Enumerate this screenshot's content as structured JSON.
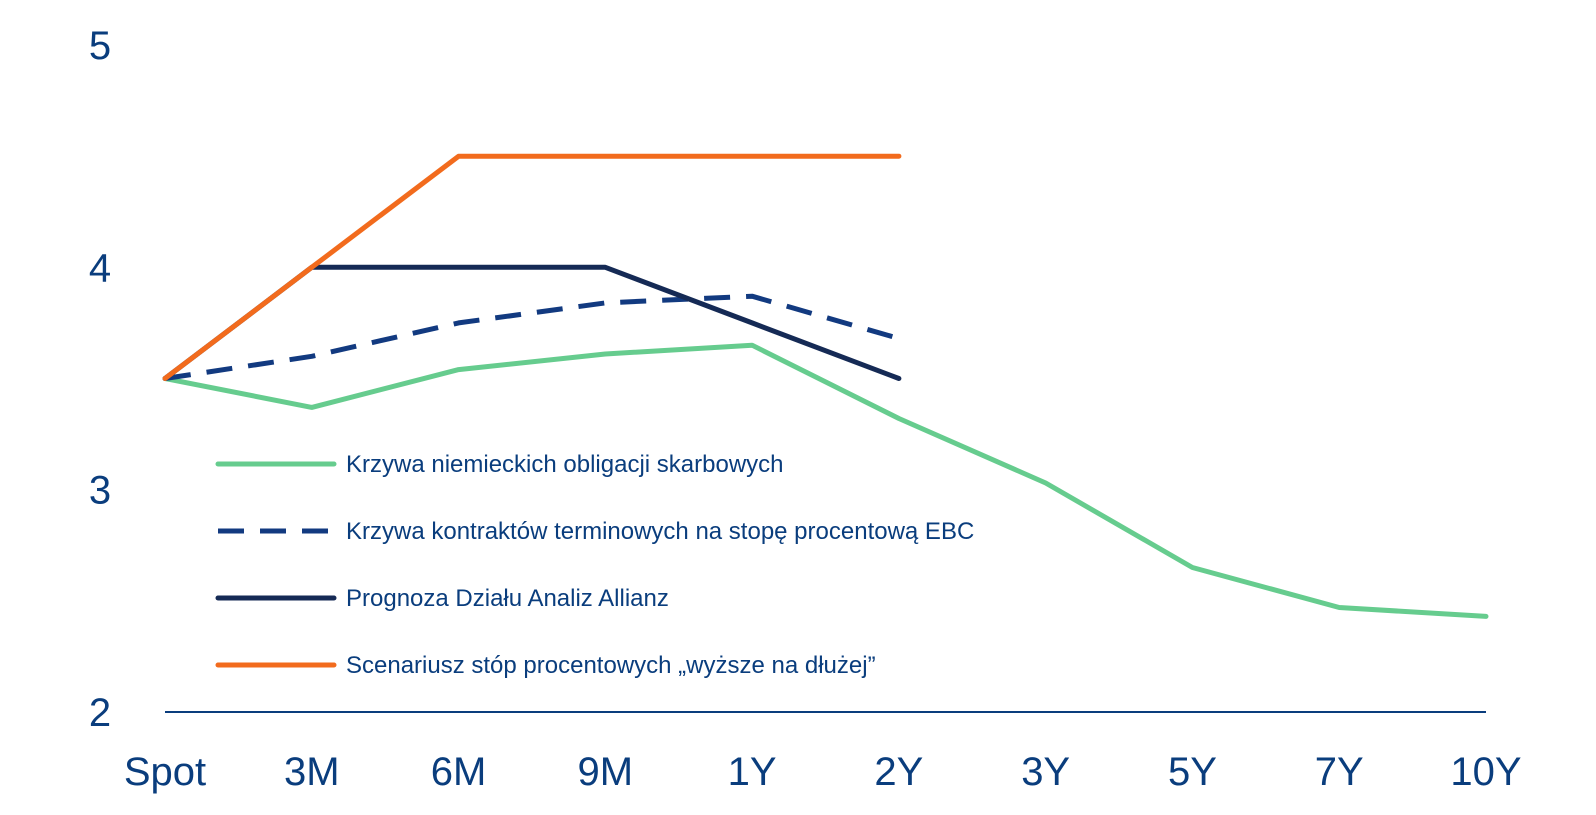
{
  "chart_data": {
    "type": "line",
    "title": "",
    "xlabel": "",
    "ylabel": "",
    "categories": [
      "Spot",
      "3M",
      "6M",
      "9M",
      "1Y",
      "2Y",
      "3Y",
      "5Y",
      "7Y",
      "10Y"
    ],
    "y_ticks": [
      "5",
      "4",
      "3",
      "2"
    ],
    "ylim": [
      2,
      5
    ],
    "grid": false,
    "legend_position": "inside-left",
    "series": [
      {
        "name": "Krzywa niemieckich obligacji skarbowych",
        "color": "#66cc8e",
        "style": "solid",
        "values": [
          3.5,
          3.37,
          3.54,
          3.61,
          3.65,
          3.32,
          3.03,
          2.65,
          2.47,
          2.43
        ]
      },
      {
        "name": "Krzywa kontraktów terminowych na stopę procentową EBC",
        "color": "#123a80",
        "style": "dashed",
        "values": [
          3.5,
          3.6,
          3.75,
          3.84,
          3.87,
          3.68,
          null,
          null,
          null,
          null
        ]
      },
      {
        "name": "Prognoza Działu Analiz Allianz",
        "color": "#152a55",
        "style": "solid",
        "values": [
          3.5,
          4.0,
          4.0,
          4.0,
          3.75,
          3.5,
          null,
          null,
          null,
          null
        ]
      },
      {
        "name": "Scenariusz stóp procentowych „wyższe na dłużej”",
        "color": "#f26b1d",
        "style": "solid",
        "values": [
          3.5,
          4.0,
          4.5,
          4.5,
          4.5,
          4.5,
          null,
          null,
          null,
          null
        ]
      }
    ]
  }
}
